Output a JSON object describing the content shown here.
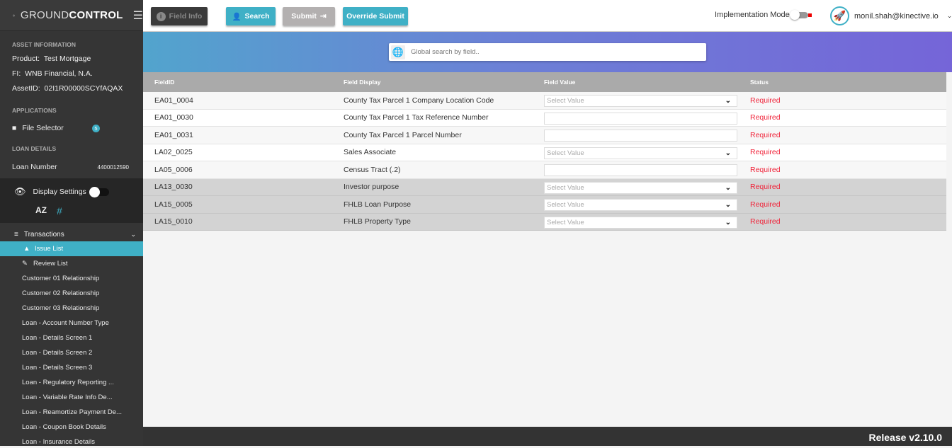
{
  "brand": {
    "name_light": "GROUND",
    "name_bold": "CONTROL"
  },
  "asset": {
    "section": "ASSET INFORMATION",
    "product_label": "Product:",
    "product": "Test Mortgage",
    "fi_label": "FI:",
    "fi": "WNB Financial, N.A.",
    "asset_label": "AssetID:",
    "asset_id": "02I1R00000SCYfAQAX"
  },
  "applications": {
    "section": "APPLICATIONS",
    "file_selector": "File Selector",
    "badge": "5"
  },
  "loan": {
    "section": "LOAN DETAILS",
    "label": "Loan Number",
    "number": "4400012590"
  },
  "display": {
    "label": "Display Settings",
    "sort_az": "AZ",
    "hash": "#"
  },
  "transactions": {
    "label": "Transactions",
    "items": [
      {
        "label": "Issue List",
        "active": true,
        "icon": "warning-icon"
      },
      {
        "label": "Review List",
        "icon": "review-icon"
      },
      {
        "label": "Customer 01 Relationship"
      },
      {
        "label": "Customer 02 Relationship"
      },
      {
        "label": "Customer 03 Relationship"
      },
      {
        "label": "Loan - Account Number Type"
      },
      {
        "label": "Loan - Details Screen 1"
      },
      {
        "label": "Loan - Details Screen 2"
      },
      {
        "label": "Loan - Details Screen 3"
      },
      {
        "label": "Loan - Regulatory Reporting ..."
      },
      {
        "label": "Loan - Variable Rate Info De..."
      },
      {
        "label": "Loan - Reamortize Payment De..."
      },
      {
        "label": "Loan - Coupon Book Details"
      },
      {
        "label": "Loan - Insurance Details"
      }
    ]
  },
  "toolbar": {
    "field_info": "Field Info",
    "search": "Search",
    "submit": "Submit",
    "override": "Override Submit",
    "impl_mode": "Implementation Mode",
    "user": "monil.shah@kinective.io"
  },
  "search": {
    "placeholder": "Global search by field.."
  },
  "table": {
    "headers": [
      "FieldID",
      "Field Display",
      "Field Value",
      "Status"
    ],
    "rows": [
      {
        "id": "EA01_0004",
        "display": "County Tax Parcel 1 Company Location Code",
        "type": "select",
        "value": "Select Value",
        "status": "Required",
        "style": "o"
      },
      {
        "id": "EA01_0030",
        "display": "County Tax Parcel 1 Tax Reference Number",
        "type": "text",
        "value": "",
        "status": "Required",
        "style": "e"
      },
      {
        "id": "EA01_0031",
        "display": "County Tax Parcel 1 Parcel Number",
        "type": "text",
        "value": "",
        "status": "Required",
        "style": "o"
      },
      {
        "id": "LA02_0025",
        "display": "Sales Associate",
        "type": "select",
        "value": "Select Value",
        "status": "Required",
        "style": "e"
      },
      {
        "id": "LA05_0006",
        "display": "Census Tract (.2)",
        "type": "text",
        "value": "",
        "status": "Required",
        "style": "o"
      },
      {
        "id": "LA13_0030",
        "display": "Investor purpose",
        "type": "select",
        "value": "Select Value",
        "status": "Required",
        "style": "g"
      },
      {
        "id": "LA15_0005",
        "display": "FHLB Loan Purpose",
        "type": "select",
        "value": "Select Value",
        "status": "Required",
        "style": "g"
      },
      {
        "id": "LA15_0010",
        "display": "FHLB Property Type",
        "type": "select",
        "value": "Select Value",
        "status": "Required",
        "style": "g"
      }
    ]
  },
  "footer": {
    "release": "Release v2.10.0"
  },
  "colors": {
    "accent": "#3fb0c6",
    "required": "#f0243a",
    "sidebar": "#353535"
  }
}
